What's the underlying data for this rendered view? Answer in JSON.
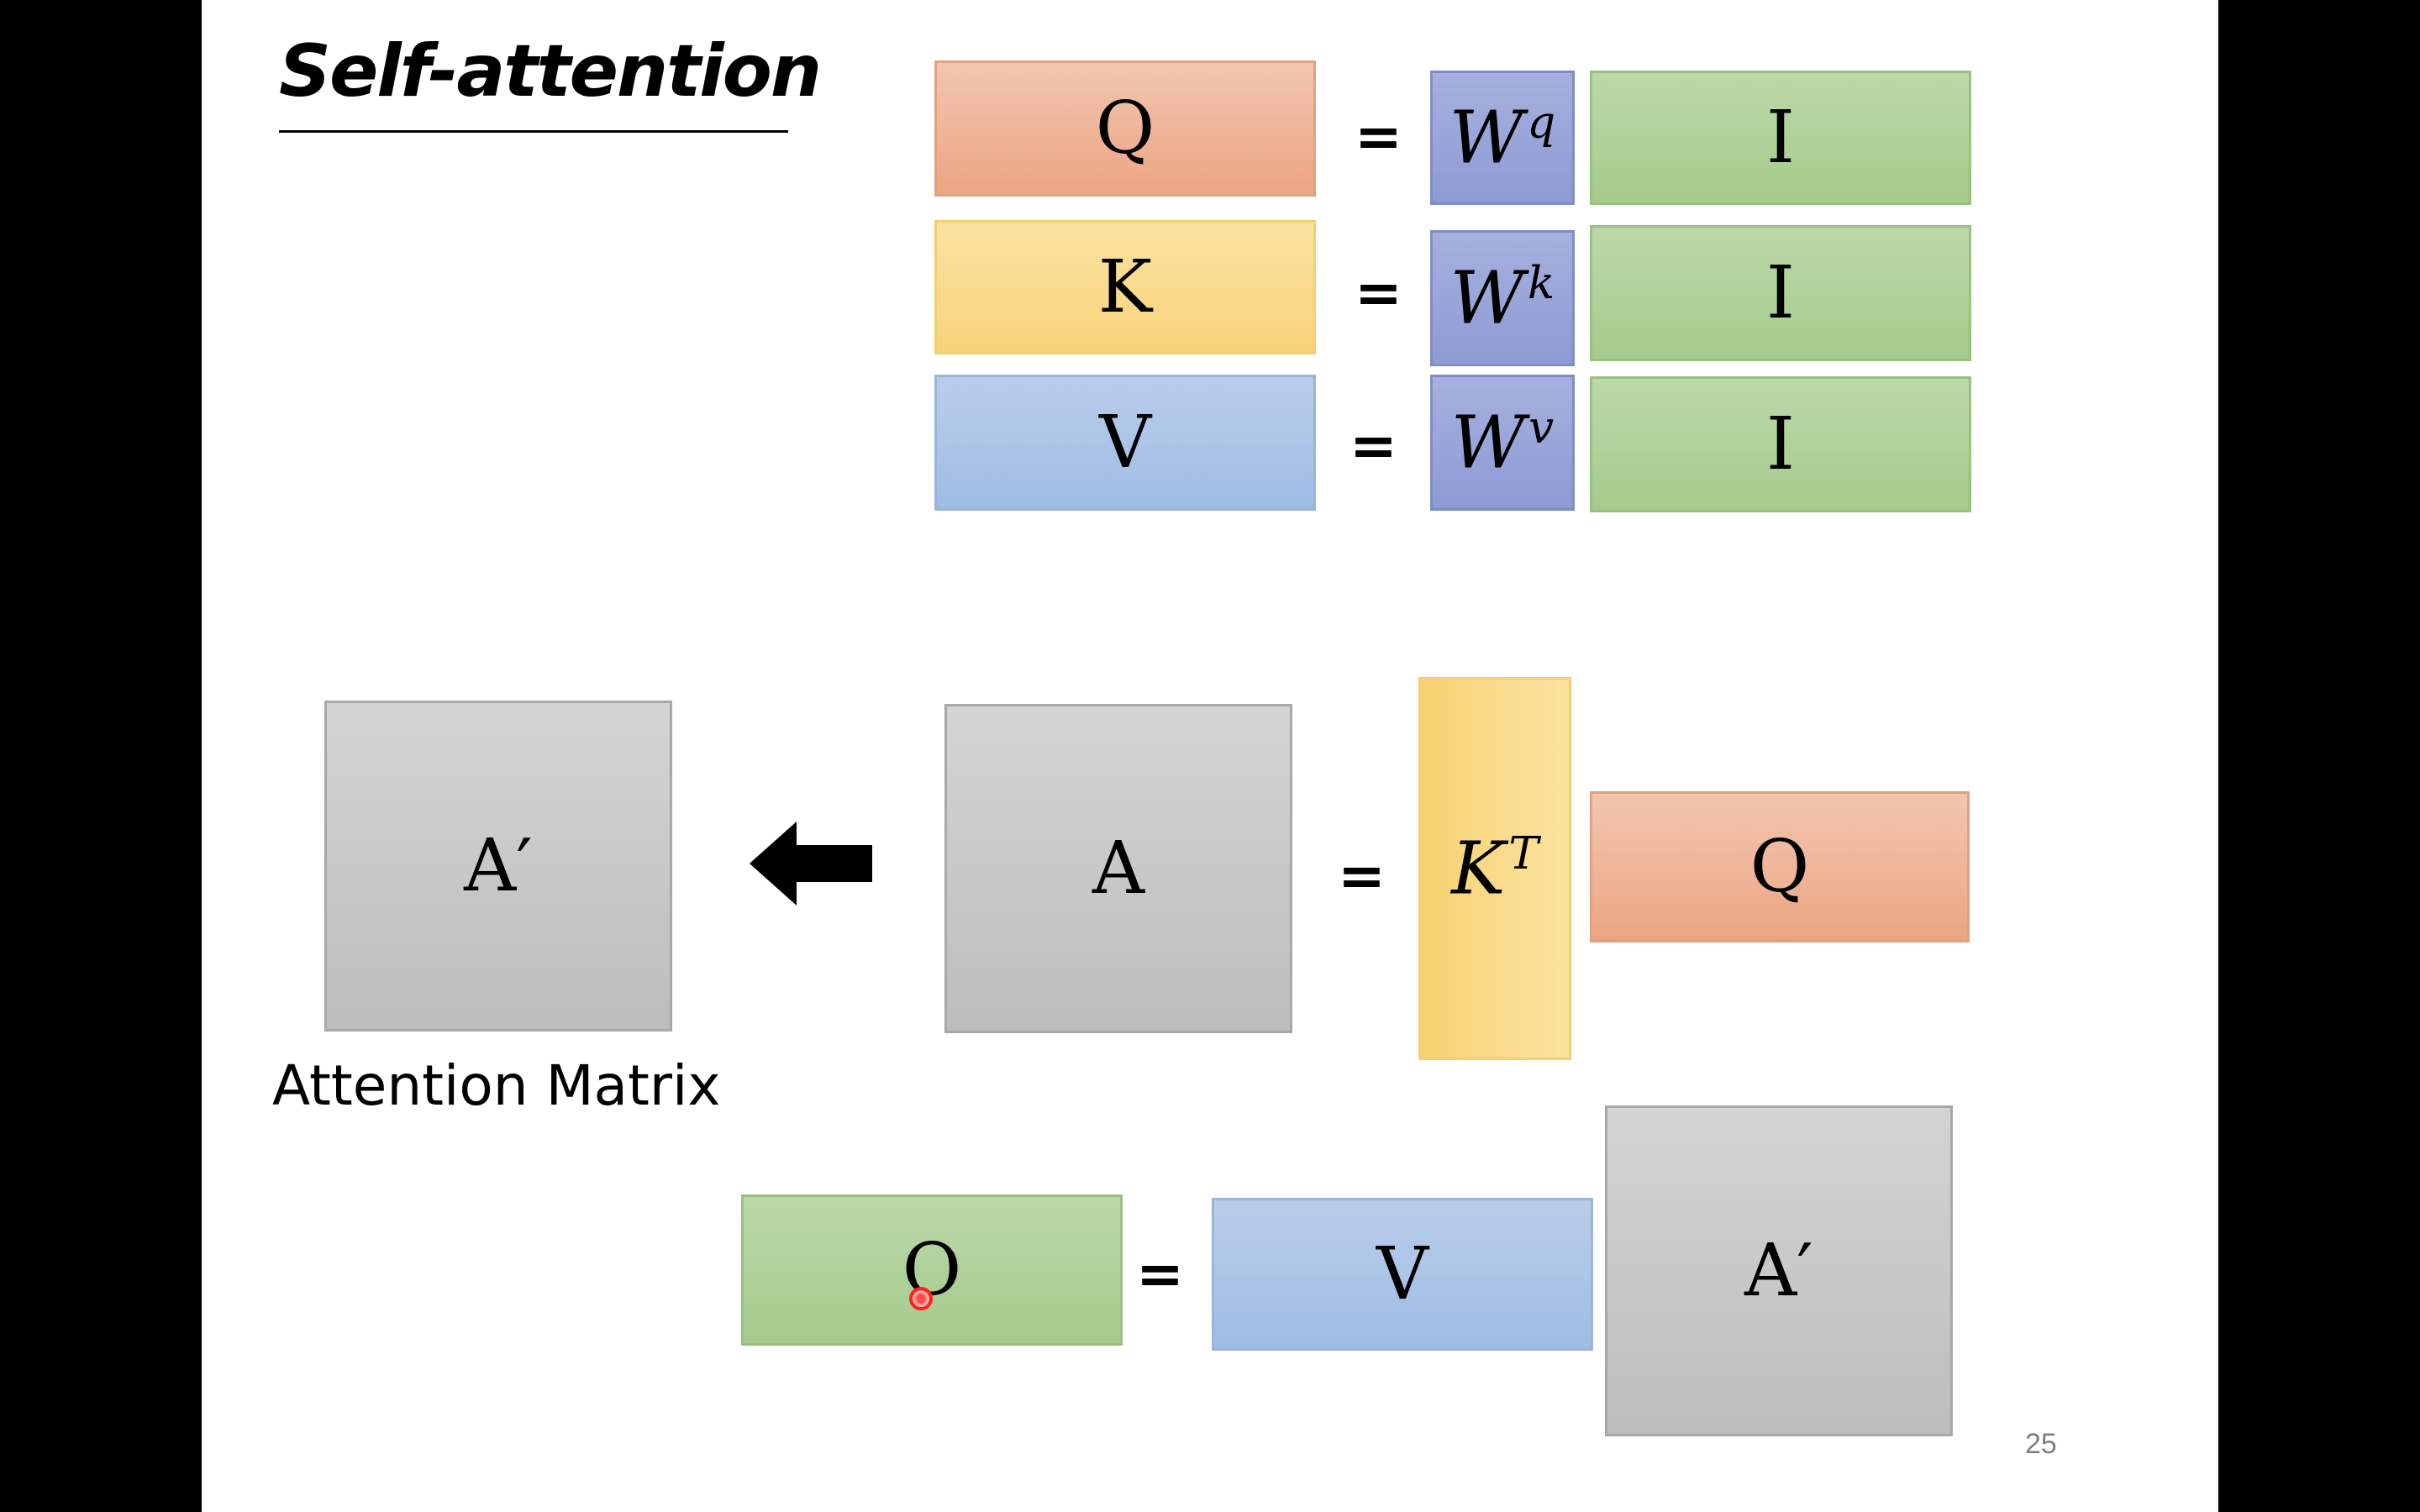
{
  "slide": {
    "title": "Self-attention",
    "caption": "Attention Matrix",
    "page_number": "25"
  },
  "equations": {
    "row_q": {
      "lhs": "Q",
      "equals": "=",
      "weight": "W",
      "weight_sup": "q",
      "input": "I"
    },
    "row_k": {
      "lhs": "K",
      "equals": "=",
      "weight": "W",
      "weight_sup": "k",
      "input": "I"
    },
    "row_v": {
      "lhs": "V",
      "equals": "=",
      "weight": "W",
      "weight_sup": "v",
      "input": "I"
    },
    "attention": {
      "normalized": "A′",
      "raw": "A",
      "equals": "=",
      "key_t": "K",
      "key_t_sup": "T",
      "query": "Q"
    },
    "output": {
      "lhs": "O",
      "equals": "=",
      "value": "V",
      "attn": "A′"
    }
  },
  "colors": {
    "query": "#eca582",
    "key": "#f8d37a",
    "value": "#9ebde5",
    "weight": "#8d9ad3",
    "input": "#a5cb8c",
    "attention": "#bdbdbd"
  },
  "icons": {
    "arrow": "arrow-left-icon",
    "cursor": "pointer-cursor-icon"
  }
}
